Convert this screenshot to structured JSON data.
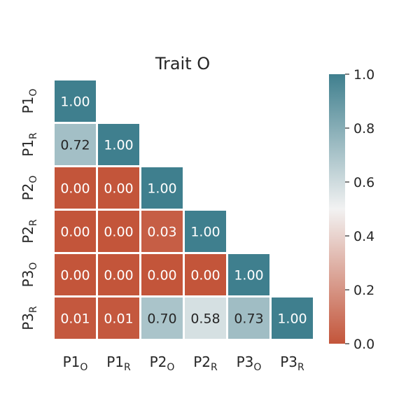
{
  "chart_data": {
    "type": "heatmap",
    "title": "Trait O",
    "row_labels": [
      {
        "main": "P1",
        "sub": "O"
      },
      {
        "main": "P1",
        "sub": "R"
      },
      {
        "main": "P2",
        "sub": "O"
      },
      {
        "main": "P2",
        "sub": "R"
      },
      {
        "main": "P3",
        "sub": "O"
      },
      {
        "main": "P3",
        "sub": "R"
      }
    ],
    "col_labels": [
      {
        "main": "P1",
        "sub": "O"
      },
      {
        "main": "P1",
        "sub": "R"
      },
      {
        "main": "P2",
        "sub": "O"
      },
      {
        "main": "P2",
        "sub": "R"
      },
      {
        "main": "P3",
        "sub": "O"
      },
      {
        "main": "P3",
        "sub": "R"
      }
    ],
    "values": [
      [
        1.0
      ],
      [
        0.72,
        1.0
      ],
      [
        0.0,
        0.0,
        1.0
      ],
      [
        0.0,
        0.0,
        0.03,
        1.0
      ],
      [
        0.0,
        0.0,
        0.0,
        0.0,
        1.0
      ],
      [
        0.01,
        0.01,
        0.7,
        0.58,
        0.73,
        1.0
      ]
    ],
    "cell_text": [
      [
        "1.00"
      ],
      [
        "0.72",
        "1.00"
      ],
      [
        "0.00",
        "0.00",
        "1.00"
      ],
      [
        "0.00",
        "0.00",
        "0.03",
        "1.00"
      ],
      [
        "0.00",
        "0.00",
        "0.00",
        "0.00",
        "1.00"
      ],
      [
        "0.01",
        "0.01",
        "0.70",
        "0.58",
        "0.73",
        "1.00"
      ]
    ],
    "mask": "upper-triangle",
    "colorbar": {
      "vmin": 0.0,
      "vmax": 1.0,
      "ticks": [
        0.0,
        0.2,
        0.4,
        0.6,
        0.8,
        1.0
      ],
      "tick_labels": [
        "0.0",
        "0.2",
        "0.4",
        "0.6",
        "0.8",
        "1.0"
      ],
      "cmap": "diverging",
      "color_low": "#c3553a",
      "color_mid": "#f2f2f2",
      "color_high": "#3f7f8e"
    }
  }
}
